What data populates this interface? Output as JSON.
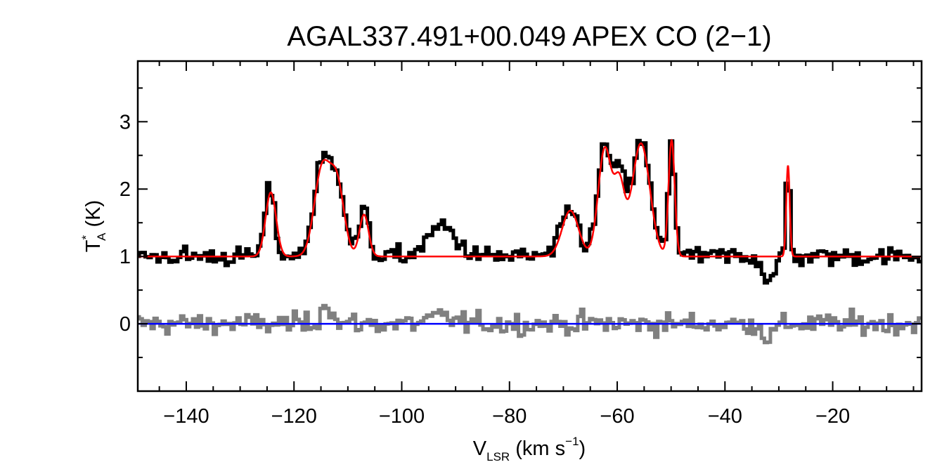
{
  "chart_data": {
    "type": "line",
    "title": "AGAL337.491+00.049  APEX CO (2−1)",
    "xlabel": {
      "main": "V",
      "sub": "LSR",
      "unit_pre": " (km s",
      "unit_sup": "−1",
      "unit_post": ")"
    },
    "ylabel": {
      "main": "T",
      "sup": "*",
      "sub": "A",
      "unit": " (K)"
    },
    "xlim": [
      -149,
      -3.5
    ],
    "ylim": [
      -1,
      3.9
    ],
    "x_major_ticks": [
      -140,
      -120,
      -100,
      -80,
      -60,
      -40,
      -20
    ],
    "x_tick_labels": [
      "−140",
      "−120",
      "−100",
      "−80",
      "−60",
      "−40",
      "−20"
    ],
    "y_major_ticks": [
      0,
      1,
      2,
      3
    ],
    "y_tick_labels": [
      "0",
      "1",
      "2",
      "3"
    ],
    "grid": false,
    "colors": {
      "spectrum": "#000000",
      "fit": "#ff0000",
      "residual": "#808080",
      "zero_line": "#0000ff",
      "axes": "#000000"
    },
    "series": [
      {
        "name": "observed spectrum",
        "style": "histogram",
        "color": "#000000",
        "baseline": 1.0,
        "noise_rms": 0.1,
        "x_range": [
          -149,
          -3.5
        ],
        "channel_width": 0.55,
        "components": [
          {
            "center": -124.5,
            "amplitude": 0.98,
            "fwhm": 2.2
          },
          {
            "center": -114.8,
            "amplitude": 1.35,
            "fwhm": 3.6
          },
          {
            "center": -111.8,
            "amplitude": 1.05,
            "fwhm": 3.2
          },
          {
            "center": -107.0,
            "amplitude": 0.65,
            "fwhm": 2.2
          },
          {
            "center": -92.5,
            "amplitude": 0.45,
            "fwhm": 6.0
          },
          {
            "center": -68.7,
            "amplitude": 0.7,
            "fwhm": 3.8
          },
          {
            "center": -62.3,
            "amplitude": 1.65,
            "fwhm": 3.0
          },
          {
            "center": -59.5,
            "amplitude": 1.05,
            "fwhm": 2.4
          },
          {
            "center": -55.6,
            "amplitude": 1.72,
            "fwhm": 4.0
          },
          {
            "center": -49.9,
            "amplitude": 1.75,
            "fwhm": 1.4
          },
          {
            "center": -31.8,
            "amplitude": -0.35,
            "fwhm": 2.5
          },
          {
            "center": -28.3,
            "amplitude": 1.4,
            "fwhm": 0.8
          }
        ]
      },
      {
        "name": "gaussian fit",
        "style": "line",
        "color": "#ff0000",
        "baseline": 1.0,
        "x_range": [
          -149,
          -3.5
        ],
        "components": [
          {
            "center": -124.3,
            "amplitude": 0.95,
            "fwhm": 2.3
          },
          {
            "center": -114.8,
            "amplitude": 1.28,
            "fwhm": 3.4
          },
          {
            "center": -112.0,
            "amplitude": 1.05,
            "fwhm": 3.1
          },
          {
            "center": -107.0,
            "amplitude": 0.62,
            "fwhm": 2.0
          },
          {
            "center": -68.7,
            "amplitude": 0.68,
            "fwhm": 3.6
          },
          {
            "center": -62.3,
            "amplitude": 1.6,
            "fwhm": 2.9
          },
          {
            "center": -59.6,
            "amplitude": 1.0,
            "fwhm": 2.3
          },
          {
            "center": -55.6,
            "amplitude": 1.68,
            "fwhm": 3.9
          },
          {
            "center": -49.9,
            "amplitude": 1.72,
            "fwhm": 1.35
          },
          {
            "center": -28.3,
            "amplitude": 1.35,
            "fwhm": 0.75
          }
        ]
      },
      {
        "name": "residual",
        "style": "histogram",
        "color": "#808080",
        "baseline": 0.0,
        "noise_rms": 0.11,
        "x_range": [
          -149,
          -3.5
        ],
        "channel_width": 0.55,
        "components": [
          {
            "center": -114.0,
            "amplitude": 0.35,
            "fwhm": 2.0
          },
          {
            "center": -92.5,
            "amplitude": 0.1,
            "fwhm": 5.0
          },
          {
            "center": -31.8,
            "amplitude": -0.2,
            "fwhm": 2.5
          }
        ]
      },
      {
        "name": "zero level",
        "style": "hline",
        "color": "#0000ff",
        "y": 0
      }
    ]
  }
}
